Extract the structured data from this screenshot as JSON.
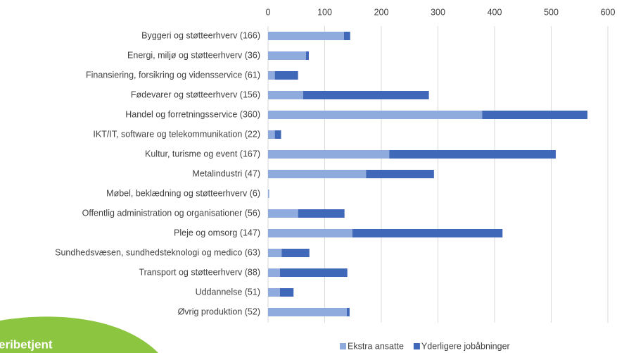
{
  "chart_data": {
    "type": "stacked-barh",
    "categories": [
      "Byggeri og støtteerhverv (166)",
      "Energi, miljø og støtteerhverv (36)",
      "Finansiering, forsikring og vidensservice (61)",
      "Fødevarer og støtteerhverv (156)",
      "Handel og forretningsservice (360)",
      "IKT/IT, software og telekommunikation (22)",
      "Kultur, turisme og event (167)",
      "Metalindustri (47)",
      "Møbel, beklædning og støtteerhverv (6)",
      "Offentlig administration og organisationer (56)",
      "Pleje og omsorg (147)",
      "Sundhedsvæsen, sundhedsteknologi og medico (63)",
      "Transport og støtteerhverv (88)",
      "Uddannelse (51)",
      "Øvrig produktion (52)"
    ],
    "series": [
      {
        "name": "Ekstra ansatte",
        "color": "#8faadc",
        "values": [
          134,
          67,
          12,
          62,
          378,
          12,
          214,
          173,
          2,
          53,
          149,
          24,
          21,
          21,
          139
        ]
      },
      {
        "name": "Yderligere jobåbninger",
        "color": "#4068b8",
        "values": [
          11,
          5,
          41,
          222,
          186,
          11,
          294,
          120,
          0,
          82,
          265,
          49,
          119,
          24,
          5
        ]
      }
    ],
    "xlim": [
      0,
      600
    ],
    "xticks": [
      0,
      100,
      200,
      300,
      400,
      500,
      600
    ],
    "grid": true,
    "legend": "bottom"
  },
  "badge": "eribetjent"
}
